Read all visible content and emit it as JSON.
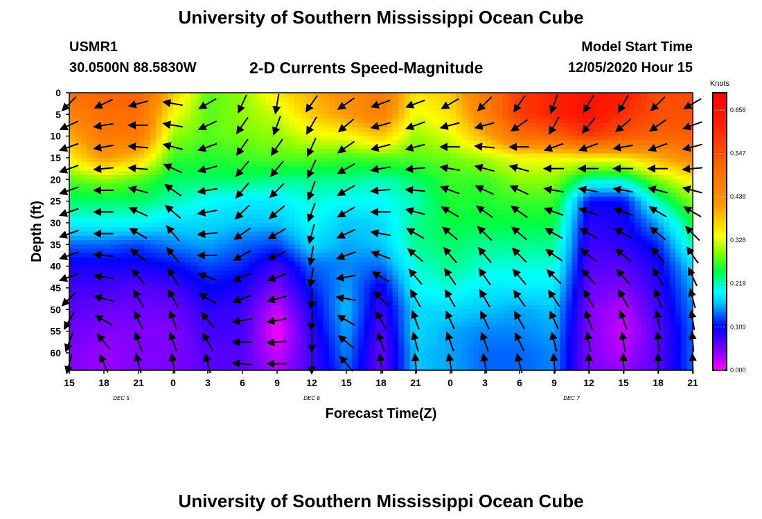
{
  "header": {
    "title": "University of Southern Mississippi Ocean Cube",
    "station_id": "USMR1",
    "coordinates": "30.0500N 88.5830W",
    "subtitle": "2-D Currents Speed-Magnitude",
    "model_start_label": "Model Start Time",
    "model_start_value": "12/05/2020 Hour 15"
  },
  "footer": {
    "title": "University of Southern Mississippi Ocean Cube"
  },
  "chart_data": {
    "type": "heatmap",
    "title": "2-D Currents Speed-Magnitude",
    "xlabel": "Forecast Time(Z)",
    "ylabel": "Depth (ft)",
    "x_tick_labels": [
      "15",
      "18",
      "21",
      "0",
      "3",
      "6",
      "9",
      "12",
      "15",
      "18",
      "21",
      "0",
      "3",
      "6",
      "9",
      "12",
      "15",
      "18",
      "21"
    ],
    "x_range_hours": [
      0,
      54
    ],
    "day_labels": [
      {
        "label": "DEC 5",
        "hour": 4.5
      },
      {
        "label": "DEC 6",
        "hour": 21
      },
      {
        "label": "DEC 7",
        "hour": 43.5
      }
    ],
    "y_ticks": [
      0,
      5,
      10,
      15,
      20,
      25,
      30,
      35,
      40,
      45,
      50,
      55,
      60
    ],
    "y_range": [
      0,
      64
    ],
    "y_inverted": true,
    "colorbar": {
      "unit": "Knots",
      "ticks": [
        0.0,
        0.109,
        0.219,
        0.328,
        0.438,
        0.547,
        0.656
      ],
      "tick_labels": [
        "0.000",
        "0.109",
        "0.219",
        "0.328",
        "0.438",
        "0.547",
        "0.656"
      ],
      "range": [
        0.0,
        0.7
      ],
      "stops": [
        {
          "v": 0.0,
          "color": "#ff00ff"
        },
        {
          "v": 0.05,
          "color": "#8000ff"
        },
        {
          "v": 0.11,
          "color": "#0000ff"
        },
        {
          "v": 0.17,
          "color": "#00c8ff"
        },
        {
          "v": 0.2,
          "color": "#00ffff"
        },
        {
          "v": 0.25,
          "color": "#00ff40"
        },
        {
          "v": 0.3,
          "color": "#90ff00"
        },
        {
          "v": 0.34,
          "color": "#ffff00"
        },
        {
          "v": 0.42,
          "color": "#ff9600"
        },
        {
          "v": 0.52,
          "color": "#ff6400"
        },
        {
          "v": 0.62,
          "color": "#ff2000"
        },
        {
          "v": 0.7,
          "color": "#ff0000"
        }
      ]
    },
    "speed_grid": {
      "hours": [
        0,
        3,
        6,
        9,
        12,
        15,
        18,
        21,
        24,
        27,
        30,
        33,
        36,
        39,
        42,
        45,
        48,
        51,
        54
      ],
      "depths": [
        0,
        5,
        10,
        15,
        20,
        25,
        30,
        35,
        40,
        45,
        50,
        55,
        60,
        64
      ],
      "values": [
        [
          0.5,
          0.46,
          0.4,
          0.35,
          0.28,
          0.24,
          0.2,
          0.14,
          0.1,
          0.08,
          0.07,
          0.06,
          0.05,
          0.05
        ],
        [
          0.52,
          0.5,
          0.48,
          0.42,
          0.3,
          0.24,
          0.2,
          0.14,
          0.1,
          0.08,
          0.06,
          0.05,
          0.04,
          0.04
        ],
        [
          0.52,
          0.5,
          0.48,
          0.38,
          0.28,
          0.24,
          0.2,
          0.13,
          0.1,
          0.07,
          0.06,
          0.05,
          0.05,
          0.05
        ],
        [
          0.38,
          0.34,
          0.3,
          0.27,
          0.24,
          0.22,
          0.18,
          0.15,
          0.11,
          0.08,
          0.06,
          0.05,
          0.05,
          0.05
        ],
        [
          0.28,
          0.28,
          0.28,
          0.26,
          0.24,
          0.2,
          0.18,
          0.16,
          0.13,
          0.11,
          0.09,
          0.08,
          0.07,
          0.07
        ],
        [
          0.3,
          0.3,
          0.29,
          0.27,
          0.24,
          0.19,
          0.17,
          0.14,
          0.12,
          0.1,
          0.08,
          0.08,
          0.07,
          0.07
        ],
        [
          0.36,
          0.32,
          0.3,
          0.28,
          0.23,
          0.19,
          0.17,
          0.13,
          0.08,
          0.05,
          0.02,
          0.0,
          0.02,
          0.03
        ],
        [
          0.4,
          0.38,
          0.33,
          0.28,
          0.23,
          0.21,
          0.2,
          0.18,
          0.14,
          0.12,
          0.1,
          0.09,
          0.08,
          0.08
        ],
        [
          0.44,
          0.42,
          0.34,
          0.27,
          0.23,
          0.2,
          0.17,
          0.16,
          0.15,
          0.16,
          0.17,
          0.16,
          0.15,
          0.14
        ],
        [
          0.48,
          0.47,
          0.38,
          0.28,
          0.22,
          0.2,
          0.18,
          0.17,
          0.14,
          0.1,
          0.08,
          0.07,
          0.06,
          0.06
        ],
        [
          0.36,
          0.33,
          0.3,
          0.28,
          0.24,
          0.22,
          0.23,
          0.23,
          0.21,
          0.2,
          0.18,
          0.18,
          0.17,
          0.17
        ],
        [
          0.38,
          0.36,
          0.33,
          0.29,
          0.27,
          0.26,
          0.25,
          0.24,
          0.23,
          0.21,
          0.18,
          0.16,
          0.16,
          0.16
        ],
        [
          0.48,
          0.46,
          0.4,
          0.31,
          0.27,
          0.26,
          0.25,
          0.23,
          0.21,
          0.19,
          0.17,
          0.15,
          0.14,
          0.14
        ],
        [
          0.58,
          0.58,
          0.5,
          0.34,
          0.3,
          0.27,
          0.25,
          0.23,
          0.21,
          0.19,
          0.16,
          0.15,
          0.14,
          0.14
        ],
        [
          0.62,
          0.62,
          0.52,
          0.34,
          0.3,
          0.27,
          0.25,
          0.23,
          0.21,
          0.19,
          0.17,
          0.16,
          0.15,
          0.15
        ],
        [
          0.66,
          0.66,
          0.58,
          0.35,
          0.22,
          0.11,
          0.09,
          0.08,
          0.07,
          0.06,
          0.05,
          0.05,
          0.05,
          0.05
        ],
        [
          0.63,
          0.6,
          0.54,
          0.36,
          0.22,
          0.11,
          0.1,
          0.09,
          0.07,
          0.05,
          0.03,
          0.02,
          0.03,
          0.04
        ],
        [
          0.55,
          0.55,
          0.52,
          0.4,
          0.3,
          0.22,
          0.16,
          0.12,
          0.1,
          0.09,
          0.08,
          0.07,
          0.07,
          0.07
        ],
        [
          0.56,
          0.55,
          0.53,
          0.45,
          0.35,
          0.3,
          0.25,
          0.22,
          0.18,
          0.16,
          0.15,
          0.14,
          0.14,
          0.14
        ]
      ]
    },
    "vectors": {
      "hours": [
        0,
        3,
        6,
        9,
        12,
        15,
        18,
        21,
        24,
        27,
        30,
        33,
        36,
        39,
        42,
        45,
        48,
        51,
        54
      ],
      "depths": [
        2.5,
        7.5,
        12.5,
        17.5,
        22.5,
        27.5,
        32.5,
        37.5,
        42.5,
        47.5,
        52.5,
        57.5,
        62.5
      ],
      "direction_deg": [
        [
          225,
          245,
          250,
          250,
          250,
          250,
          250,
          250,
          250,
          225,
          210,
          200,
          195
        ],
        [
          245,
          260,
          260,
          265,
          270,
          270,
          270,
          275,
          280,
          285,
          300,
          320,
          335
        ],
        [
          255,
          270,
          275,
          275,
          285,
          295,
          300,
          310,
          320,
          330,
          335,
          340,
          345
        ],
        [
          280,
          280,
          285,
          295,
          305,
          310,
          320,
          320,
          330,
          330,
          340,
          340,
          350
        ],
        [
          240,
          245,
          250,
          255,
          260,
          260,
          265,
          270,
          290,
          300,
          320,
          330,
          345
        ],
        [
          205,
          215,
          215,
          220,
          220,
          225,
          235,
          240,
          245,
          250,
          260,
          270,
          275
        ],
        [
          190,
          200,
          215,
          220,
          225,
          230,
          240,
          245,
          250,
          255,
          260,
          265,
          270
        ],
        [
          215,
          210,
          205,
          205,
          200,
          200,
          195,
          190,
          190,
          185,
          185,
          180,
          180
        ],
        [
          235,
          230,
          235,
          240,
          240,
          240,
          245,
          250,
          260,
          280,
          300,
          310,
          320
        ],
        [
          250,
          255,
          255,
          260,
          265,
          270,
          280,
          290,
          300,
          315,
          330,
          340,
          350
        ],
        [
          250,
          250,
          255,
          265,
          275,
          285,
          300,
          310,
          320,
          330,
          340,
          345,
          355
        ],
        [
          240,
          255,
          270,
          280,
          290,
          300,
          310,
          320,
          325,
          330,
          335,
          340,
          350
        ],
        [
          225,
          255,
          275,
          285,
          295,
          305,
          315,
          320,
          325,
          330,
          335,
          340,
          350
        ],
        [
          215,
          235,
          270,
          285,
          295,
          305,
          310,
          315,
          320,
          325,
          330,
          335,
          345
        ],
        [
          200,
          210,
          250,
          270,
          280,
          290,
          300,
          305,
          315,
          325,
          335,
          345,
          355
        ],
        [
          210,
          220,
          250,
          270,
          280,
          290,
          300,
          310,
          320,
          330,
          340,
          350,
          358
        ],
        [
          210,
          230,
          260,
          270,
          280,
          290,
          300,
          310,
          320,
          330,
          340,
          350,
          358
        ],
        [
          225,
          235,
          250,
          270,
          285,
          300,
          310,
          320,
          330,
          340,
          350,
          355,
          358
        ],
        [
          240,
          250,
          255,
          265,
          285,
          300,
          315,
          325,
          335,
          345,
          350,
          355,
          358
        ]
      ]
    }
  }
}
